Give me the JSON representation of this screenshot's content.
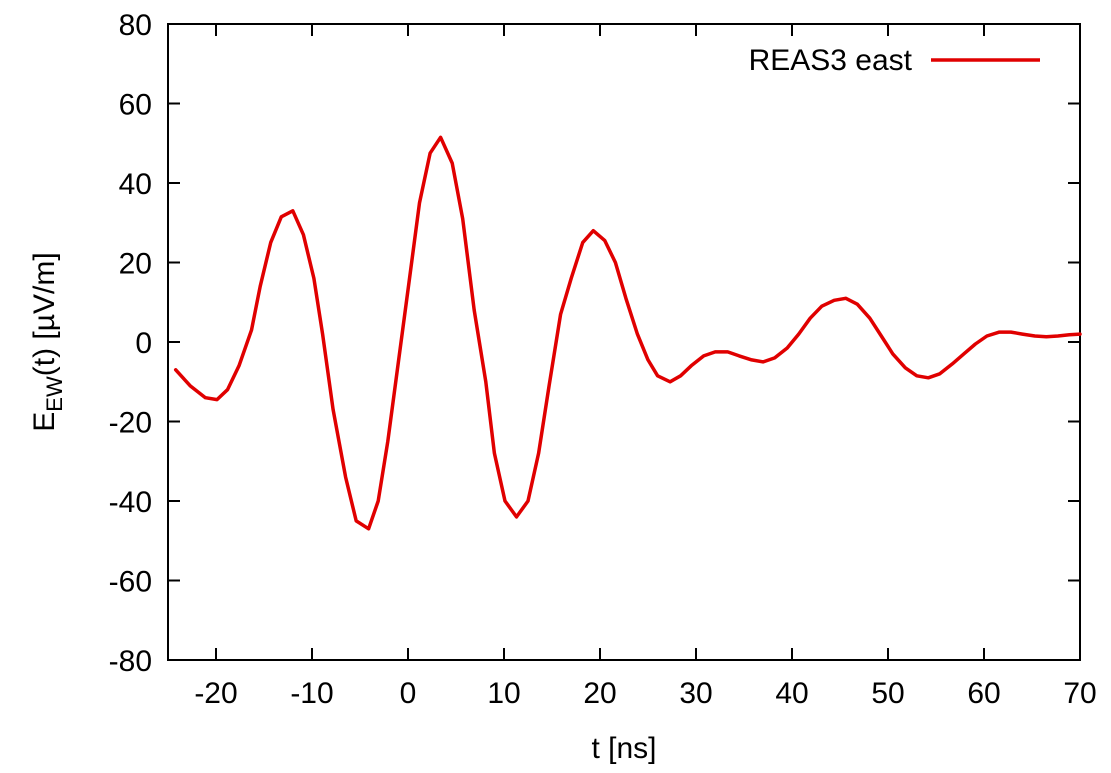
{
  "chart_data": {
    "type": "line",
    "xlabel": "t [ns]",
    "ylabel": {
      "main": "E",
      "subscript": "EW",
      "rest": "(t) [µV/m]"
    },
    "xlim": [
      -25,
      70
    ],
    "ylim": [
      -80,
      80
    ],
    "xticks": [
      -20,
      -10,
      0,
      10,
      20,
      30,
      40,
      50,
      60,
      70
    ],
    "yticks": [
      -80,
      -60,
      -40,
      -20,
      0,
      20,
      40,
      60,
      80
    ],
    "grid": false,
    "legend_position": "top-right",
    "series": [
      {
        "name": "REAS3 east",
        "color": "#e00000",
        "x": [
          -24.2,
          -22.7,
          -21.1,
          -19.9,
          -18.8,
          -17.6,
          -16.3,
          -15.4,
          -14.3,
          -13.2,
          -12.0,
          -10.9,
          -9.8,
          -8.9,
          -7.8,
          -6.5,
          -5.4,
          -4.1,
          -3.1,
          -2.1,
          -1.0,
          0.1,
          1.2,
          2.3,
          3.4,
          4.6,
          5.7,
          6.9,
          8.1,
          9.0,
          10.1,
          11.3,
          12.5,
          13.6,
          14.7,
          15.9,
          17.0,
          18.2,
          19.3,
          20.5,
          21.6,
          22.7,
          23.9,
          25.0,
          26.0,
          27.3,
          28.4,
          29.5,
          30.8,
          32.0,
          33.3,
          34.5,
          35.8,
          37.0,
          38.2,
          39.5,
          40.7,
          41.9,
          43.1,
          44.4,
          45.6,
          46.8,
          48.1,
          49.3,
          50.5,
          51.8,
          53.0,
          54.2,
          55.4,
          56.7,
          57.9,
          59.1,
          60.3,
          61.6,
          62.8,
          64.0,
          65.3,
          66.5,
          67.7,
          68.9,
          70.0
        ],
        "y": [
          -7,
          -11,
          -14,
          -14.5,
          -12,
          -6,
          3,
          14,
          25,
          31.5,
          33,
          27,
          16,
          2,
          -17,
          -34,
          -45,
          -47,
          -40,
          -25,
          -5,
          15,
          35,
          47.5,
          51.5,
          45,
          31,
          8,
          -10,
          -28,
          -40,
          -44,
          -40,
          -28,
          -11,
          7,
          16,
          25,
          28,
          25.5,
          20,
          11,
          2,
          -4.5,
          -8.5,
          -10,
          -8.5,
          -6,
          -3.5,
          -2.5,
          -2.5,
          -3.5,
          -4.5,
          -5,
          -4,
          -1.5,
          2,
          6,
          9,
          10.5,
          11,
          9.5,
          6,
          1.5,
          -3,
          -6.5,
          -8.5,
          -9,
          -8,
          -5.5,
          -3,
          -0.5,
          1.5,
          2.5,
          2.5,
          2,
          1.5,
          1.3,
          1.5,
          1.8,
          2
        ]
      }
    ]
  }
}
